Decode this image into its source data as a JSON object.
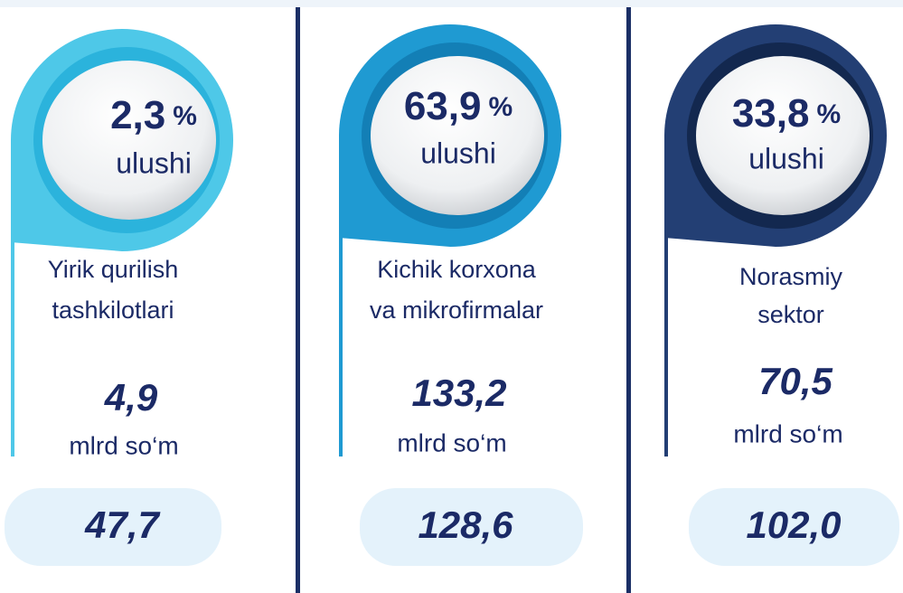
{
  "cards": [
    {
      "percent": "2,3",
      "percent_unit": "%",
      "share_label": "ulushi",
      "name": [
        "Yirik qurilish",
        "tashkilotlari"
      ],
      "amount": "4,9",
      "amount_unit": "mlrd so‘m",
      "total": "47,7"
    },
    {
      "percent": "63,9",
      "percent_unit": "%",
      "share_label": "ulushi",
      "name": [
        "Kichik korxona",
        "va mikrofirmalar"
      ],
      "amount": "133,2",
      "amount_unit": "mlrd so‘m",
      "total": "128,6"
    },
    {
      "percent": "33,8",
      "percent_unit": "%",
      "share_label": "ulushi",
      "name": [
        "Norasmiy",
        "sektor"
      ],
      "amount": "70,5",
      "amount_unit": "mlrd so‘m",
      "total": "102,0"
    }
  ]
}
